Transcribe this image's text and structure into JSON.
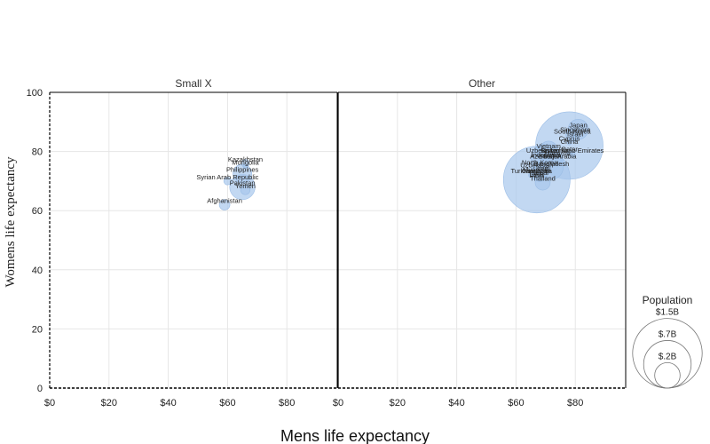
{
  "chart_data": {
    "type": "scatter",
    "title": "",
    "xlabel": "Mens life expectancy",
    "ylabel": "Womens life expectancy",
    "x_tick_labels": [
      "$0",
      "$20",
      "$40",
      "$60",
      "$80"
    ],
    "y_tick_labels": [
      "0",
      "20",
      "40",
      "60",
      "80",
      "100"
    ],
    "xlim": [
      0,
      97
    ],
    "ylim": [
      0,
      100
    ],
    "grid": true,
    "size_by": "Population",
    "panels": [
      {
        "name": "Small X",
        "points": [
          {
            "label": "Kazakhstan",
            "x": 66,
            "y": 76,
            "size": 0.019
          },
          {
            "label": "Mongolia",
            "x": 66,
            "y": 75,
            "size": 0.003
          },
          {
            "label": "Philippines",
            "x": 65,
            "y": 72.5,
            "size": 0.11
          },
          {
            "label": "Syrian Arab Republic",
            "x": 60,
            "y": 70,
            "size": 0.018
          },
          {
            "label": "Pakistan",
            "x": 65,
            "y": 68,
            "size": 0.2
          },
          {
            "label": "Yemen",
            "x": 66,
            "y": 67,
            "size": 0.028
          },
          {
            "label": "Afghanistan",
            "x": 59,
            "y": 62,
            "size": 0.035
          }
        ]
      },
      {
        "name": "Other",
        "points": [
          {
            "label": "Japan",
            "x": 81,
            "y": 87.5,
            "size": 0.126
          },
          {
            "label": "Singapore",
            "x": 80,
            "y": 86,
            "size": 0.006
          },
          {
            "label": "South Korea",
            "x": 79,
            "y": 85.5,
            "size": 0.051
          },
          {
            "label": "Israel",
            "x": 80,
            "y": 84.5,
            "size": 0.009
          },
          {
            "label": "Cyprus",
            "x": 78,
            "y": 83,
            "size": 0.001
          },
          {
            "label": "China",
            "x": 78,
            "y": 82,
            "size": 1.41
          },
          {
            "label": "Vietnam",
            "x": 71,
            "y": 80.5,
            "size": 0.097
          },
          {
            "label": "Qatar",
            "x": 78,
            "y": 79.5,
            "size": 0.003
          },
          {
            "label": "United Arab Emirates",
            "x": 79,
            "y": 79,
            "size": 0.01
          },
          {
            "label": "Uzbekistan",
            "x": 69,
            "y": 79,
            "size": 0.034
          },
          {
            "label": "Sri Lanka",
            "x": 73,
            "y": 79,
            "size": 0.022
          },
          {
            "label": "Malaysia",
            "x": 74,
            "y": 78,
            "size": 0.032
          },
          {
            "label": "Indonesia",
            "x": 70,
            "y": 77.5,
            "size": 0.27
          },
          {
            "label": "Saudi Arabia",
            "x": 74,
            "y": 77,
            "size": 0.035
          },
          {
            "label": "Azerbaijan",
            "x": 70,
            "y": 77,
            "size": 0.01
          },
          {
            "label": "North Korea",
            "x": 68,
            "y": 75,
            "size": 0.026
          },
          {
            "label": "Uzbekistan",
            "x": 67,
            "y": 74,
            "size": 0.034
          },
          {
            "label": "Bangladesh",
            "x": 72,
            "y": 74.5,
            "size": 0.165
          },
          {
            "label": "Turkmenistan",
            "x": 65,
            "y": 72,
            "size": 0.006
          },
          {
            "label": "Myanmar",
            "x": 67,
            "y": 72.5,
            "size": 0.054
          },
          {
            "label": "Cambodia",
            "x": 67,
            "y": 72,
            "size": 0.016
          },
          {
            "label": "Nepal",
            "x": 68,
            "y": 71.5,
            "size": 0.029
          },
          {
            "label": "India",
            "x": 67,
            "y": 70.5,
            "size": 1.38
          },
          {
            "label": "Laos",
            "x": 67,
            "y": 71,
            "size": 0.007
          },
          {
            "label": "Iraq",
            "x": 69,
            "y": 73,
            "size": 0.04
          },
          {
            "label": "Thailand",
            "x": 69,
            "y": 69.5,
            "size": 0.07
          }
        ]
      }
    ],
    "legend": {
      "title": "Population",
      "position": "right",
      "entries": [
        {
          "label": "$1.5B",
          "value": 1.5
        },
        {
          "label": "$.7B",
          "value": 0.7
        },
        {
          "label": "$.2B",
          "value": 0.2
        }
      ]
    },
    "colors": {
      "marker": "#a8c8ec",
      "marker_opacity": "0.7",
      "axis": "#000000",
      "grid": "#e6e6e6"
    }
  }
}
